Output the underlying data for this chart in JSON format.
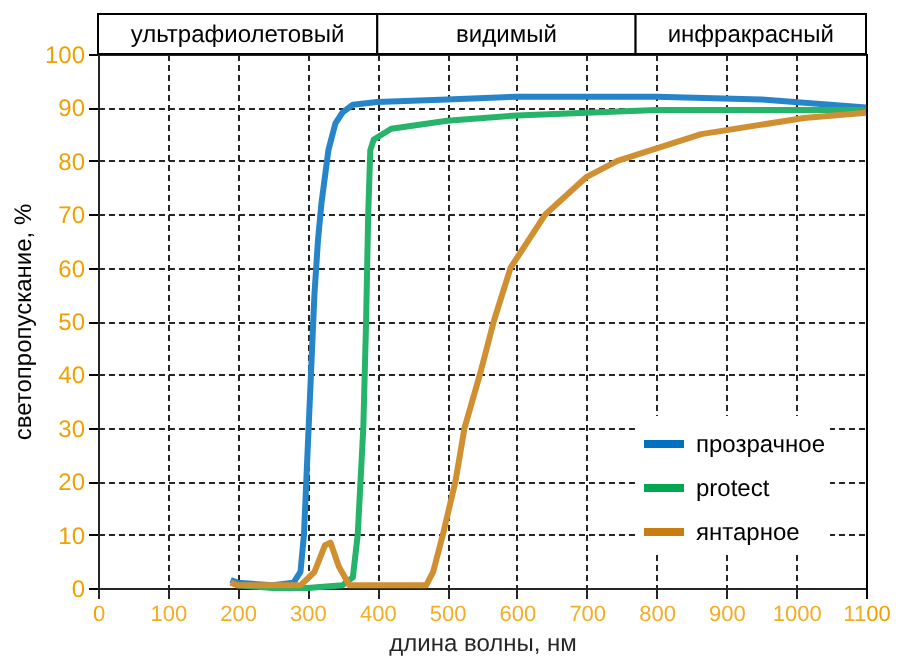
{
  "chart_data": {
    "type": "line",
    "xlabel": "длина волны, нм",
    "ylabel": "светопропускание, %",
    "xlim": [
      0,
      1100
    ],
    "xticks": [
      0,
      100,
      200,
      300,
      400,
      500,
      600,
      700,
      800,
      900,
      1000,
      1100
    ],
    "ylim": [
      0,
      100
    ],
    "yticks": [
      0,
      10,
      20,
      30,
      40,
      50,
      60,
      70,
      80,
      90,
      100
    ],
    "grid": true,
    "legend": "bottom right",
    "marker": "none",
    "line_style": "solid",
    "bands": [
      {
        "axis": "x",
        "from": 0,
        "to": 400,
        "label": "ультрафиолетовый"
      },
      {
        "axis": "x",
        "from": 400,
        "to": 770,
        "label": "видимый"
      },
      {
        "axis": "x",
        "from": 770,
        "to": 1100,
        "label": "инфракрасный"
      }
    ],
    "series": [
      {
        "name": "прозрачное",
        "color": "#0070c0",
        "x": [
          190,
          200,
          250,
          280,
          290,
          295,
          300,
          305,
          310,
          315,
          320,
          330,
          340,
          350,
          365,
          400,
          500,
          600,
          800,
          950,
          1100
        ],
        "values": [
          1.5,
          1,
          0.5,
          1,
          3,
          10,
          25,
          40,
          55,
          65,
          72,
          82,
          87,
          89,
          90.5,
          91,
          91.5,
          92,
          92,
          91.5,
          90
        ]
      },
      {
        "name": "protect",
        "color": "#00a650",
        "x": [
          200,
          250,
          300,
          350,
          365,
          372,
          380,
          384,
          387,
          390,
          395,
          420,
          500,
          600,
          700,
          800,
          1100
        ],
        "values": [
          0.5,
          0,
          0,
          0.5,
          2,
          10,
          30,
          50,
          70,
          82,
          84,
          86,
          87.5,
          88.5,
          89,
          89.5,
          89.5
        ]
      },
      {
        "name": "янтарное",
        "color": "#c87d0e",
        "x": [
          190,
          200,
          290,
          310,
          325,
          333,
          345,
          360,
          400,
          470,
          480,
          494,
          512,
          525,
          547,
          567,
          591,
          641,
          700,
          744,
          864,
          1011,
          1100
        ],
        "values": [
          1,
          0.5,
          0.5,
          3,
          8,
          8.5,
          4,
          0.5,
          0.5,
          0.5,
          3,
          10,
          20,
          30,
          40,
          50,
          60,
          70,
          77,
          80,
          85,
          88,
          89
        ]
      }
    ]
  }
}
